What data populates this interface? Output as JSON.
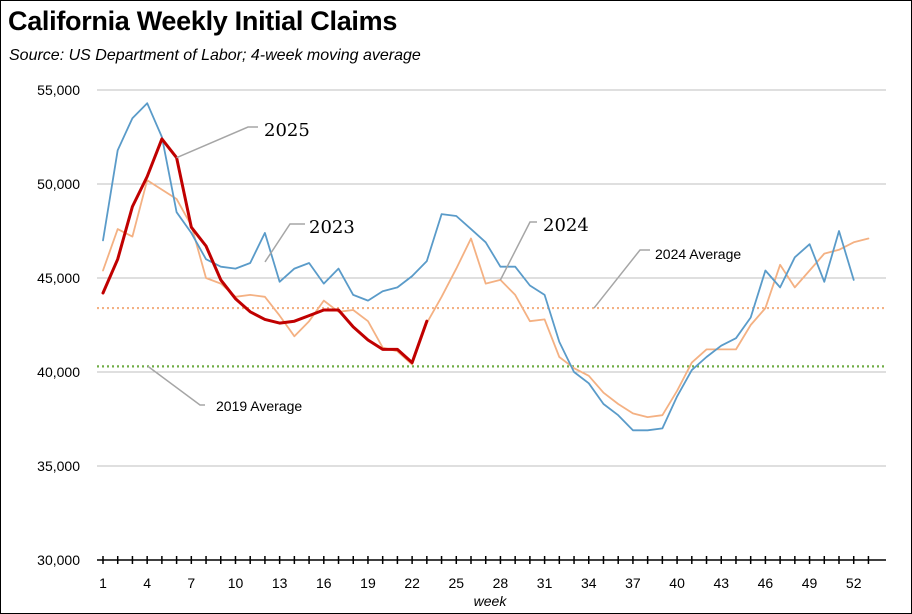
{
  "chart_data": {
    "type": "line",
    "title": "California Weekly Initial Claims",
    "subtitle": "Source:  US Department of Labor; 4-week moving average",
    "xlabel": "week",
    "ylabel": "",
    "xlim": [
      1,
      53
    ],
    "ylim": [
      30000,
      55000
    ],
    "y_ticks": [
      30000,
      35000,
      40000,
      45000,
      50000,
      55000
    ],
    "y_tick_labels": [
      "30,000",
      "35,000",
      "40,000",
      "45,000",
      "50,000",
      "55,000"
    ],
    "x_ticks": [
      1,
      4,
      7,
      10,
      13,
      16,
      19,
      22,
      25,
      28,
      31,
      34,
      37,
      40,
      43,
      46,
      49,
      52
    ],
    "x_tick_labels": [
      "1",
      "4",
      "7",
      "10",
      "13",
      "16",
      "19",
      "22",
      "25",
      "28",
      "31",
      "34",
      "37",
      "40",
      "43",
      "46",
      "49",
      "52"
    ],
    "grid": "horizontal",
    "series": [
      {
        "name": "2023",
        "color": "#5a9bc9",
        "x": [
          1,
          2,
          3,
          4,
          5,
          6,
          7,
          8,
          9,
          10,
          11,
          12,
          13,
          14,
          15,
          16,
          17,
          18,
          19,
          20,
          21,
          22,
          23,
          24,
          25,
          26,
          27,
          28,
          29,
          30,
          31,
          32,
          33,
          34,
          35,
          36,
          37,
          38,
          39,
          40,
          41,
          42,
          43,
          44,
          45,
          46,
          47,
          48,
          49,
          50,
          51,
          52
        ],
        "values": [
          47000,
          51800,
          53500,
          54300,
          52500,
          48500,
          47400,
          46000,
          45600,
          45500,
          45800,
          47400,
          44800,
          45500,
          45800,
          44700,
          45500,
          44100,
          43800,
          44300,
          44500,
          45100,
          45900,
          48400,
          48300,
          47600,
          46900,
          45600,
          45600,
          44600,
          44100,
          41600,
          40000,
          39400,
          38300,
          37700,
          36900,
          36900,
          37000,
          38700,
          40100,
          40800,
          41400,
          41800,
          42900,
          45400,
          44500,
          46100,
          46800,
          44800,
          47500,
          44900
        ]
      },
      {
        "name": "2024",
        "color": "#f4b183",
        "x": [
          1,
          2,
          3,
          4,
          5,
          6,
          7,
          8,
          9,
          10,
          11,
          12,
          13,
          14,
          15,
          16,
          17,
          18,
          19,
          20,
          21,
          22,
          23,
          24,
          25,
          26,
          27,
          28,
          29,
          30,
          31,
          32,
          33,
          34,
          35,
          36,
          37,
          38,
          39,
          40,
          41,
          42,
          43,
          44,
          45,
          46,
          47,
          48,
          49,
          50,
          51,
          52,
          53
        ],
        "values": [
          45400,
          47600,
          47200,
          50200,
          49700,
          49200,
          47800,
          45000,
          44700,
          44000,
          44100,
          44000,
          43000,
          41900,
          42700,
          43800,
          43200,
          43300,
          42700,
          41300,
          41100,
          40400,
          42600,
          44000,
          45500,
          47100,
          44700,
          44900,
          44100,
          42700,
          42800,
          40800,
          40200,
          39800,
          38900,
          38300,
          37800,
          37600,
          37700,
          39000,
          40500,
          41200,
          41200,
          41200,
          42500,
          43400,
          45700,
          44500,
          45400,
          46300,
          46500,
          46900,
          47100
        ]
      },
      {
        "name": "2025",
        "color": "#c00000",
        "x": [
          1,
          2,
          3,
          4,
          5,
          6,
          7,
          8,
          9,
          10,
          11,
          12,
          13,
          14,
          15,
          16,
          17,
          18,
          19,
          20,
          21,
          22,
          23
        ],
        "values": [
          44200,
          46000,
          48800,
          50400,
          52400,
          51400,
          47700,
          46700,
          44900,
          43900,
          43200,
          42800,
          42600,
          42700,
          43000,
          43300,
          43300,
          42400,
          41700,
          41200,
          41200,
          40500,
          42700
        ]
      }
    ],
    "reference_lines": [
      {
        "name": "2024 Average",
        "value": 43400,
        "color": "#f4b183"
      },
      {
        "name": "2019 Average",
        "value": 40300,
        "color": "#70ad47"
      }
    ],
    "annotations": [
      {
        "text": "2025",
        "size": "big"
      },
      {
        "text": "2023",
        "size": "big"
      },
      {
        "text": "2024",
        "size": "big"
      },
      {
        "text": "2024 Average",
        "size": "small"
      },
      {
        "text": "2019 Average",
        "size": "small"
      }
    ]
  }
}
